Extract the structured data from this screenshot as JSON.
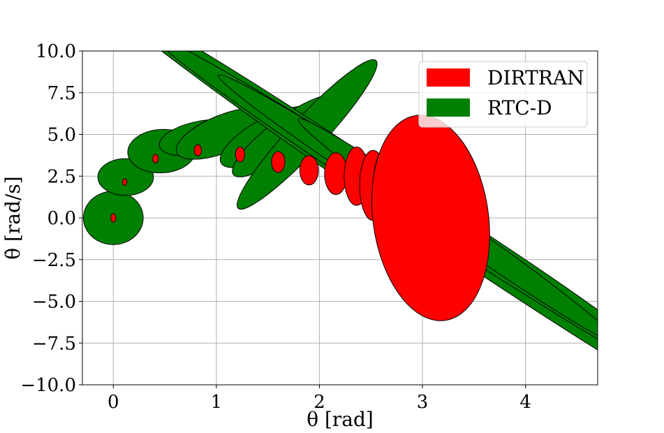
{
  "chart_data": {
    "type": "scatter",
    "title": "",
    "xlabel": "θ [rad]",
    "ylabel": "θ̇ [rad/s]",
    "xlim": [
      -0.3,
      4.7
    ],
    "ylim": [
      -10.0,
      10.0
    ],
    "xticks": [
      0,
      1,
      2,
      3,
      4
    ],
    "yticks": [
      10.0,
      7.5,
      5.0,
      2.5,
      0.0,
      -2.5,
      -5.0,
      -7.5,
      -10.0
    ],
    "xtick_labels": [
      "0",
      "1",
      "2",
      "3",
      "4"
    ],
    "ytick_labels": [
      "10.0",
      "7.5",
      "5.0",
      "2.5",
      "0.0",
      "−2.5",
      "−5.0",
      "−7.5",
      "−10.0"
    ],
    "grid": true,
    "legend_position": "top-right",
    "series": [
      {
        "name": "RTC-D",
        "color": "#008000",
        "ellipses": [
          {
            "cx": 0.0,
            "cy": 0.0,
            "rx": 0.29,
            "ry": 1.6,
            "angle": 0
          },
          {
            "cx": 0.12,
            "cy": 2.45,
            "rx": 0.27,
            "ry": 1.1,
            "angle": 0
          },
          {
            "cx": 0.47,
            "cy": 4.0,
            "rx": 0.33,
            "ry": 1.3,
            "angle": -3
          },
          {
            "cx": 0.85,
            "cy": 4.8,
            "rx": 0.41,
            "ry": 1.0,
            "angle": -11
          },
          {
            "cx": 1.07,
            "cy": 5.05,
            "rx": 0.49,
            "ry": 1.12,
            "angle": -22
          },
          {
            "cx": 1.5,
            "cy": 4.85,
            "rx": 0.52,
            "ry": 1.12,
            "angle": -29
          },
          {
            "cx": 1.66,
            "cy": 4.9,
            "rx": 0.62,
            "ry": 1.02,
            "angle": -37
          },
          {
            "cx": 1.88,
            "cy": 5.0,
            "rx": 0.98,
            "ry": 1.02,
            "angle": -47
          },
          {
            "cx": 3.0,
            "cy": 0.2,
            "rx": 3.7,
            "ry": 1.05,
            "angle": 34
          },
          {
            "cx": 3.1,
            "cy": 0.0,
            "rx": 3.2,
            "ry": 0.9,
            "angle": 33
          },
          {
            "cx": 3.2,
            "cy": -0.2,
            "rx": 2.6,
            "ry": 0.8,
            "angle": 33
          },
          {
            "cx": 3.35,
            "cy": -0.8,
            "rx": 1.9,
            "ry": 0.72,
            "angle": 35
          }
        ]
      },
      {
        "name": "DIRTRAN",
        "color": "#ff0000",
        "ellipses": [
          {
            "cx": 0.0,
            "cy": 0.0,
            "rx": 0.025,
            "ry": 0.26,
            "angle": 0
          },
          {
            "cx": 0.11,
            "cy": 2.15,
            "rx": 0.022,
            "ry": 0.2,
            "angle": 0
          },
          {
            "cx": 0.41,
            "cy": 3.55,
            "rx": 0.028,
            "ry": 0.27,
            "angle": 0
          },
          {
            "cx": 0.82,
            "cy": 4.05,
            "rx": 0.035,
            "ry": 0.34,
            "angle": 0
          },
          {
            "cx": 1.23,
            "cy": 3.8,
            "rx": 0.045,
            "ry": 0.45,
            "angle": 0
          },
          {
            "cx": 1.6,
            "cy": 3.35,
            "rx": 0.065,
            "ry": 0.63,
            "angle": 0
          },
          {
            "cx": 1.9,
            "cy": 2.85,
            "rx": 0.09,
            "ry": 0.88,
            "angle": 0
          },
          {
            "cx": 2.16,
            "cy": 2.65,
            "rx": 0.11,
            "ry": 1.25,
            "angle": 0
          },
          {
            "cx": 2.36,
            "cy": 2.5,
            "rx": 0.12,
            "ry": 1.75,
            "angle": 0
          },
          {
            "cx": 2.52,
            "cy": 1.95,
            "rx": 0.13,
            "ry": 2.1,
            "angle": 0
          },
          {
            "cx": 2.68,
            "cy": 1.75,
            "rx": 0.16,
            "ry": 2.7,
            "angle": 0
          },
          {
            "cx": 3.08,
            "cy": 0.0,
            "rx": 0.56,
            "ry": 6.2,
            "angle": -8
          }
        ]
      }
    ]
  }
}
